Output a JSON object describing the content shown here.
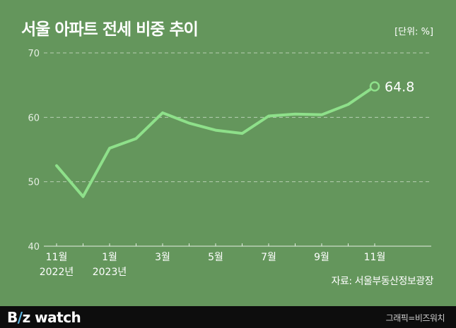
{
  "header": {
    "title": "서울 아파트 전세 비중 추이",
    "unit": "[단위: %]"
  },
  "source": "자료: 서울부동산정보광장",
  "footer": {
    "logo": {
      "b": "B",
      "slash": "/",
      "z": "z",
      "rest": " watch"
    },
    "credit": "그래픽=비즈워치"
  },
  "colors": {
    "background": "#64965c",
    "line": "#8ee08a",
    "grid": "#b7cfb2",
    "footer": "#0d0d0d"
  },
  "chart_data": {
    "type": "line",
    "title": "서울 아파트 전세 비중 추이",
    "xlabel": "",
    "ylabel": "",
    "ylim": [
      40,
      70
    ],
    "yticks": [
      40,
      50,
      60,
      70
    ],
    "grid": "horizontal dashed",
    "x": [
      "2022-11",
      "2022-12",
      "2023-01",
      "2023-02",
      "2023-03",
      "2023-04",
      "2023-05",
      "2023-06",
      "2023-07",
      "2023-08",
      "2023-09",
      "2023-10",
      "2023-11"
    ],
    "xtick_labels": [
      {
        "x": "2022-11",
        "line1": "11월",
        "line2": "2022년"
      },
      {
        "x": "2023-01",
        "line1": "1월",
        "line2": "2023년"
      },
      {
        "x": "2023-03",
        "line1": "3월",
        "line2": ""
      },
      {
        "x": "2023-05",
        "line1": "5월",
        "line2": ""
      },
      {
        "x": "2023-07",
        "line1": "7월",
        "line2": ""
      },
      {
        "x": "2023-09",
        "line1": "9월",
        "line2": ""
      },
      {
        "x": "2023-11",
        "line1": "11월",
        "line2": ""
      }
    ],
    "series": [
      {
        "values": [
          52.5,
          47.7,
          55.2,
          56.7,
          60.7,
          59.1,
          58.0,
          57.5,
          60.2,
          60.5,
          60.4,
          62.0,
          64.8
        ]
      }
    ],
    "annotation": {
      "x": "2023-11",
      "label": "64.8"
    }
  }
}
